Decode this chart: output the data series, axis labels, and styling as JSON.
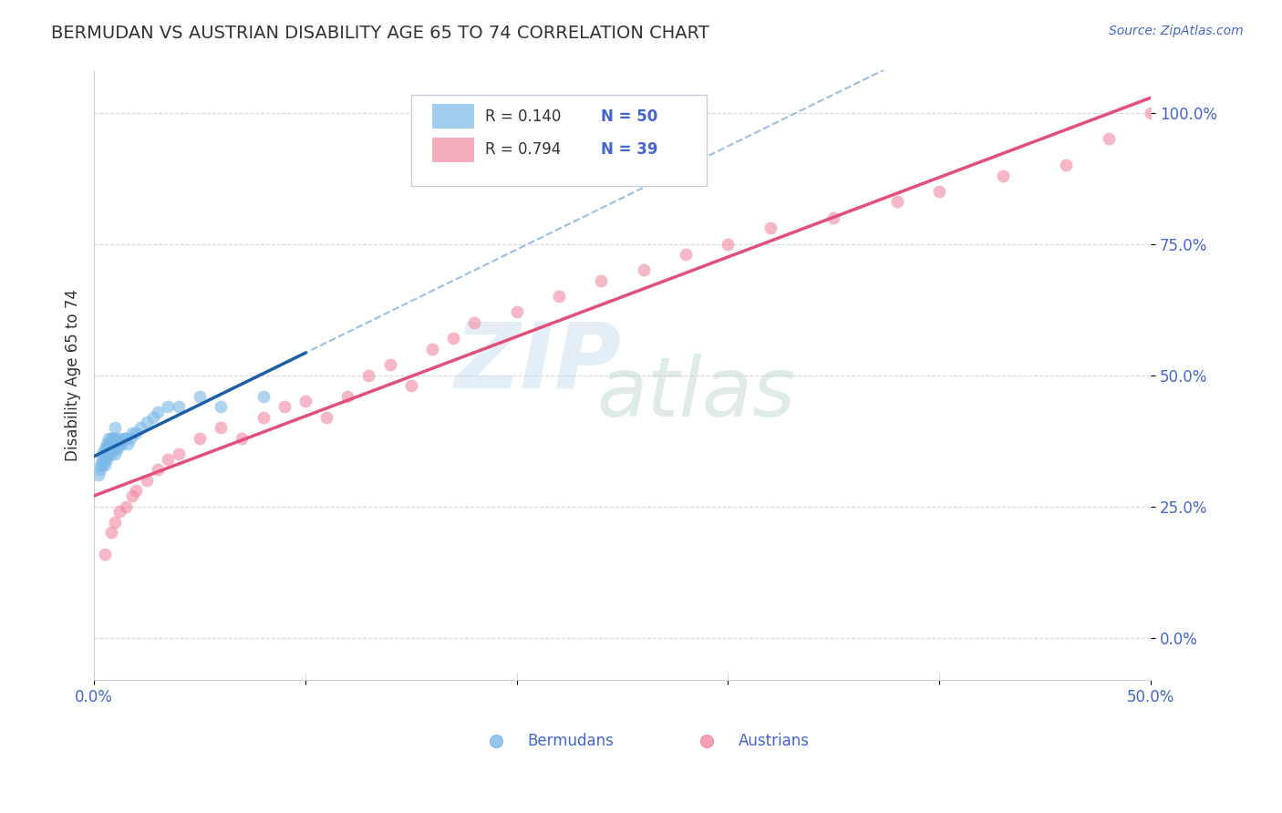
{
  "title": "BERMUDAN VS AUSTRIAN DISABILITY AGE 65 TO 74 CORRELATION CHART",
  "source": "Source: ZipAtlas.com",
  "ylabel": "Disability Age 65 to 74",
  "xlim": [
    0.0,
    0.5
  ],
  "ylim": [
    -0.08,
    1.08
  ],
  "xticks": [
    0.0,
    0.1,
    0.2,
    0.3,
    0.4,
    0.5
  ],
  "xtick_labels": [
    "0.0%",
    "",
    "",
    "",
    "",
    "50.0%"
  ],
  "yticks": [
    0.0,
    0.25,
    0.5,
    0.75,
    1.0
  ],
  "ytick_labels": [
    "0.0%",
    "25.0%",
    "50.0%",
    "75.0%",
    "100.0%"
  ],
  "dot_color_bermuda": "#7ab8e8",
  "dot_color_austrian": "#f08aa0",
  "dot_alpha": 0.6,
  "dot_size": 100,
  "line_color_bermuda": "#1a5fa8",
  "line_color_austrian": "#e0507a",
  "line_color_dashed": "#90b8e0",
  "watermark_zip_color": "#c8dff0",
  "watermark_atlas_color": "#b8d4c8",
  "title_color": "#333333",
  "tick_color": "#4466cc",
  "background_color": "#ffffff",
  "grid_color": "#ccccdd",
  "bermuda_points_x": [
    0.002,
    0.003,
    0.003,
    0.004,
    0.004,
    0.004,
    0.005,
    0.005,
    0.005,
    0.005,
    0.006,
    0.006,
    0.006,
    0.006,
    0.007,
    0.007,
    0.007,
    0.007,
    0.008,
    0.008,
    0.008,
    0.008,
    0.009,
    0.009,
    0.009,
    0.01,
    0.01,
    0.01,
    0.01,
    0.01,
    0.011,
    0.011,
    0.012,
    0.012,
    0.013,
    0.014,
    0.015,
    0.016,
    0.017,
    0.018,
    0.02,
    0.022,
    0.025,
    0.028,
    0.03,
    0.035,
    0.04,
    0.05,
    0.06,
    0.08
  ],
  "bermuda_points_y": [
    0.31,
    0.33,
    0.32,
    0.34,
    0.35,
    0.33,
    0.34,
    0.35,
    0.36,
    0.33,
    0.34,
    0.35,
    0.36,
    0.37,
    0.35,
    0.36,
    0.37,
    0.38,
    0.35,
    0.36,
    0.37,
    0.38,
    0.36,
    0.37,
    0.38,
    0.35,
    0.36,
    0.37,
    0.38,
    0.4,
    0.36,
    0.37,
    0.37,
    0.38,
    0.37,
    0.38,
    0.38,
    0.37,
    0.38,
    0.39,
    0.39,
    0.4,
    0.41,
    0.42,
    0.43,
    0.44,
    0.44,
    0.46,
    0.44,
    0.46
  ],
  "austrian_points_x": [
    0.005,
    0.008,
    0.01,
    0.012,
    0.015,
    0.018,
    0.02,
    0.025,
    0.03,
    0.035,
    0.04,
    0.05,
    0.06,
    0.07,
    0.08,
    0.09,
    0.1,
    0.11,
    0.12,
    0.13,
    0.14,
    0.15,
    0.16,
    0.17,
    0.18,
    0.2,
    0.22,
    0.24,
    0.26,
    0.28,
    0.3,
    0.32,
    0.35,
    0.38,
    0.4,
    0.43,
    0.46,
    0.48,
    0.5
  ],
  "austrian_points_y": [
    0.16,
    0.2,
    0.22,
    0.24,
    0.25,
    0.27,
    0.28,
    0.3,
    0.32,
    0.34,
    0.35,
    0.38,
    0.4,
    0.38,
    0.42,
    0.44,
    0.45,
    0.42,
    0.46,
    0.5,
    0.52,
    0.48,
    0.55,
    0.57,
    0.6,
    0.62,
    0.65,
    0.68,
    0.7,
    0.73,
    0.75,
    0.78,
    0.8,
    0.83,
    0.85,
    0.88,
    0.9,
    0.95,
    1.0
  ],
  "bermuda_line_xmin": 0.0,
  "bermuda_line_xmax": 0.1,
  "austrian_line_xmin": 0.0,
  "austrian_line_xmax": 0.5
}
